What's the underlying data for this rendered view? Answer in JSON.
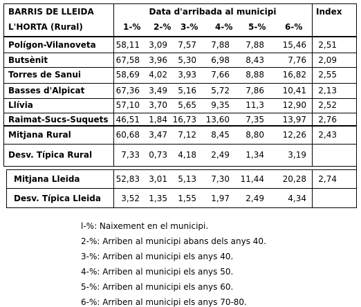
{
  "table": {
    "header": {
      "area_line1": "BARRIS DE LLEIDA",
      "area_line2": "L'HORTA (Rural)",
      "group_title": "Data d'arribada al municipi",
      "index": "Index",
      "columns": [
        "1-%",
        "2-%",
        "3-%",
        "4-%",
        "5-%",
        "6-%"
      ]
    },
    "rows": [
      {
        "name": "Polígon-Vilanoveta",
        "values": [
          "58,11",
          "3,09",
          "7,57",
          "7,88",
          "7,88",
          "15,46"
        ],
        "index": "2,51"
      },
      {
        "name": "Butsènit",
        "values": [
          "67,58",
          "3,96",
          "5,30",
          "6,98",
          "8,43",
          "7,76"
        ],
        "index": "2,09"
      },
      {
        "name": "Torres de Sanui",
        "values": [
          "58,69",
          "4,02",
          "3,93",
          "7,66",
          "8,88",
          "16,82"
        ],
        "index": "2,55"
      },
      {
        "name": "Basses d'Alpicat",
        "values": [
          "67,36",
          "3,49",
          "5,16",
          "5,72",
          "7,86",
          "10,41"
        ],
        "index": "2,13"
      },
      {
        "name": "Llívia",
        "values": [
          "57,10",
          "3,70",
          "5,65",
          "9,35",
          "11,3",
          "12,90"
        ],
        "index": "2,52"
      },
      {
        "name": "Raimat-Sucs-Suquets",
        "values": [
          "46,51",
          "1,84",
          "16,73",
          "13,60",
          "7,35",
          "13,97"
        ],
        "index": "2,76"
      }
    ],
    "mitjana_rural": {
      "name": "Mitjana Rural",
      "values": [
        "60,68",
        "3,47",
        "7,12",
        "8,45",
        "8,80",
        "12,26"
      ],
      "index": "2,43"
    },
    "desv_rural": {
      "name": "Desv. Típica Rural",
      "values": [
        "7,33",
        "0,73",
        "4,18",
        "2,49",
        "1,34",
        "3,19"
      ],
      "index": ""
    },
    "mitjana_lleida": {
      "name": "Mitjana Lleida",
      "values": [
        "52,83",
        "3,01",
        "5,13",
        "7,30",
        "11,44",
        "20,28"
      ],
      "index": "2,74"
    },
    "desv_lleida": {
      "name": "Desv. Típica Lleida",
      "values": [
        "3,52",
        "1,35",
        "1,55",
        "1,97",
        "2,49",
        "4,34"
      ],
      "index": ""
    }
  },
  "legend": [
    "l-%: Naixement en el municipi.",
    "2-%: Arriben al municipi abans dels anys 40.",
    "3-%: Arriben al municipi els anys 40.",
    "4-%: Arriben al municipi els anys 50.",
    "5-%: Arriben al municipi els anys 60.",
    "6-%: Arriben al municipi els anys 70-80."
  ]
}
